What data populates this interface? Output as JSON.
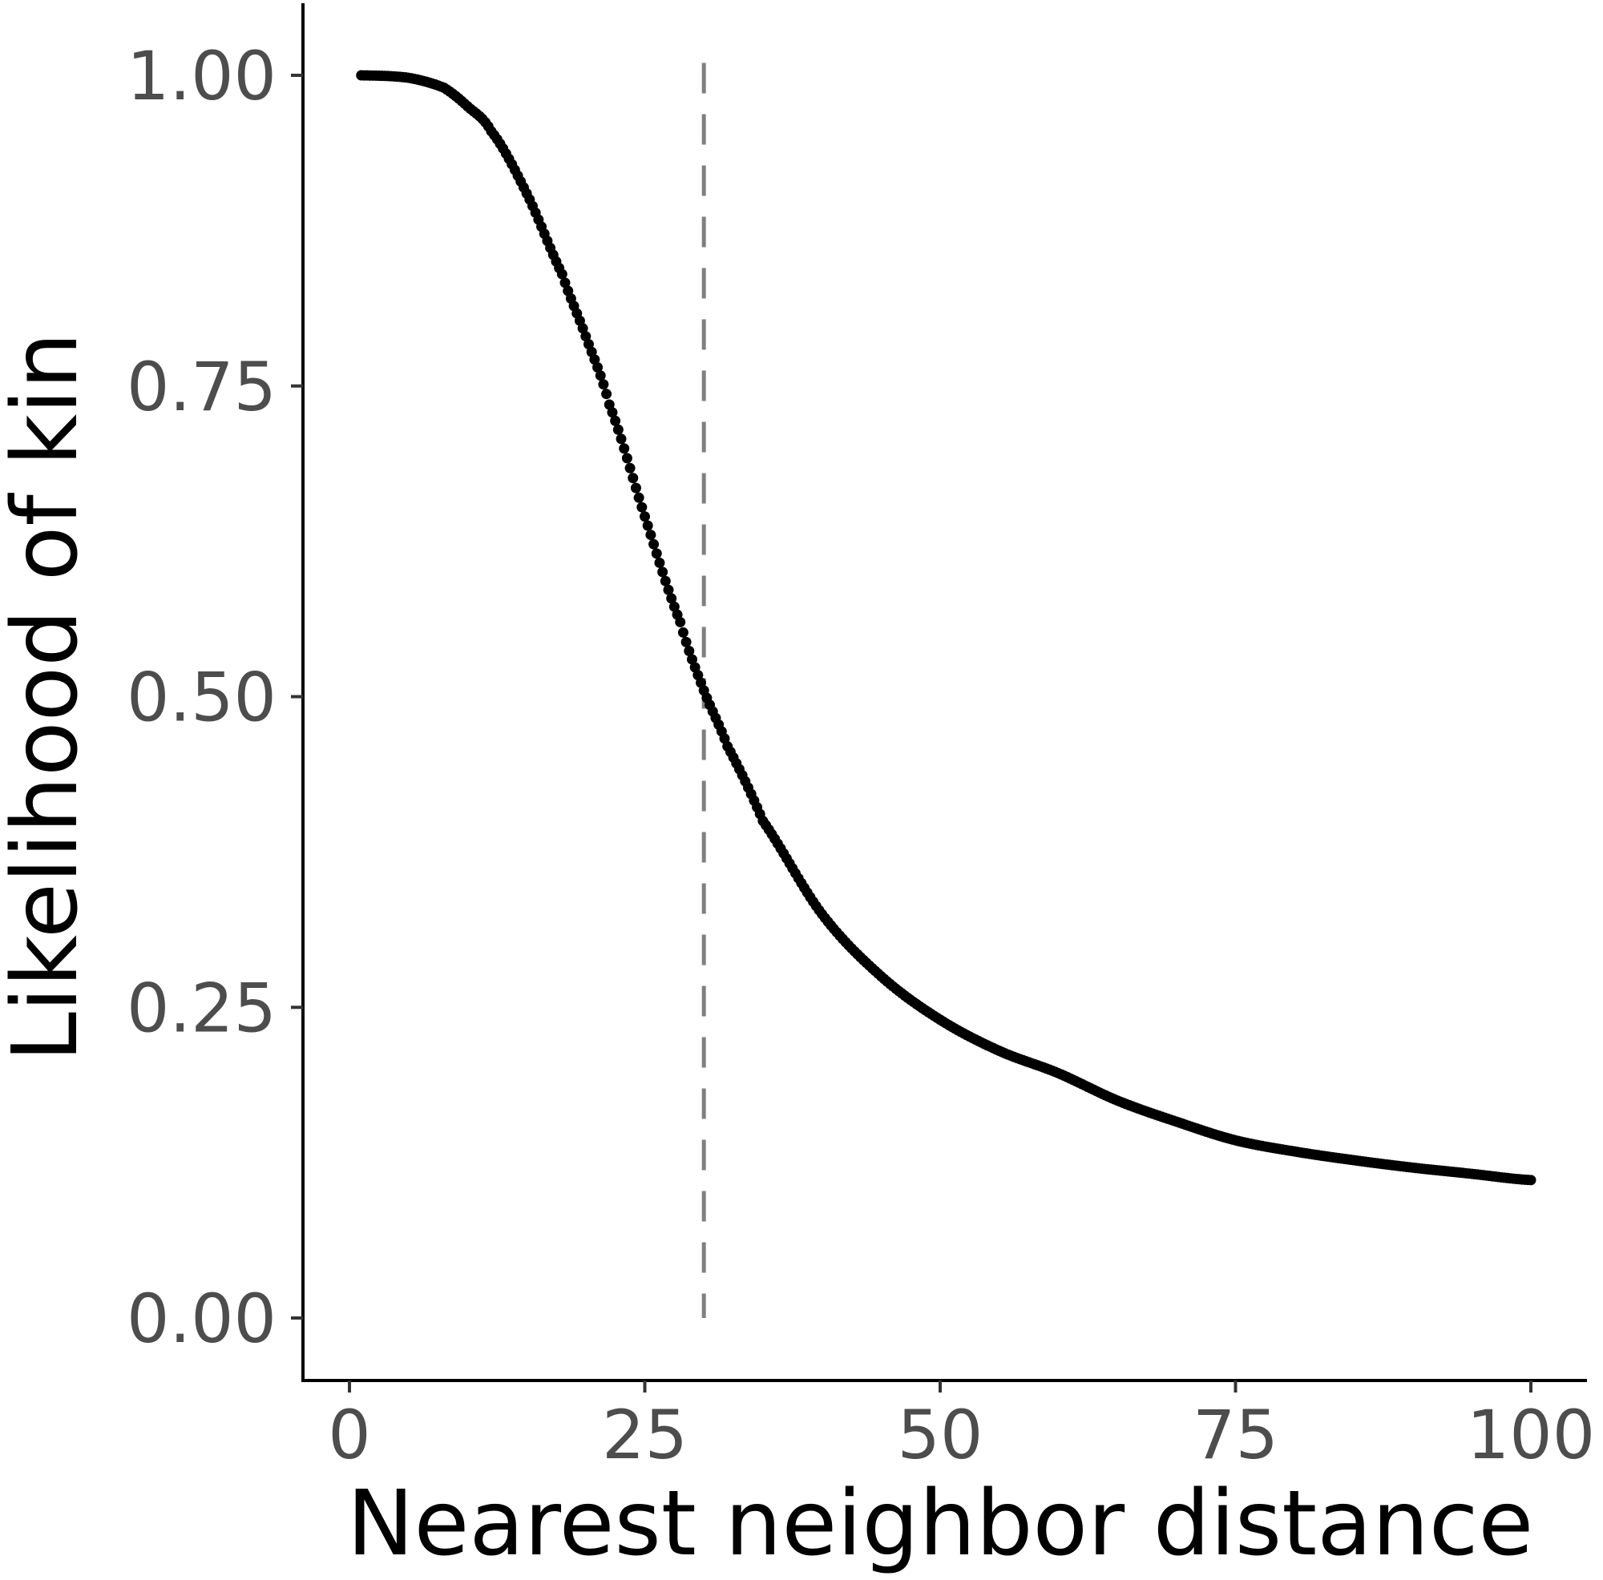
{
  "chart_data": {
    "type": "scatter",
    "title": "",
    "xlabel": "Nearest neighbor distance",
    "ylabel": "Likelihood of kin",
    "xlim": [
      -3,
      104
    ],
    "ylim": [
      -0.05,
      1.06
    ],
    "xticks": [
      0,
      25,
      50,
      75,
      100
    ],
    "xtick_labels": [
      "0",
      "25",
      "50",
      "75",
      "100"
    ],
    "yticks": [
      0,
      0.25,
      0.5,
      0.75,
      1.0
    ],
    "ytick_labels": [
      "0.00",
      "0.25",
      "0.50",
      "0.75",
      "1.00"
    ],
    "grid": false,
    "reference_line": {
      "orientation": "vertical",
      "x": 30,
      "style": "dashed",
      "color": "#7f7f7f"
    },
    "series": [
      {
        "name": "Likelihood of kin",
        "color": "#000000",
        "x": [
          1,
          5,
          8,
          10,
          12,
          15,
          18,
          20,
          22,
          25,
          28,
          30,
          32,
          35,
          40,
          45,
          50,
          55,
          60,
          65,
          70,
          75,
          80,
          85,
          90,
          95,
          100
        ],
        "y": [
          1.0,
          0.998,
          0.99,
          0.975,
          0.955,
          0.905,
          0.84,
          0.79,
          0.735,
          0.645,
          0.56,
          0.505,
          0.46,
          0.4,
          0.325,
          0.275,
          0.24,
          0.215,
          0.197,
          0.175,
          0.158,
          0.143,
          0.134,
          0.127,
          0.121,
          0.116,
          0.111
        ]
      }
    ]
  }
}
